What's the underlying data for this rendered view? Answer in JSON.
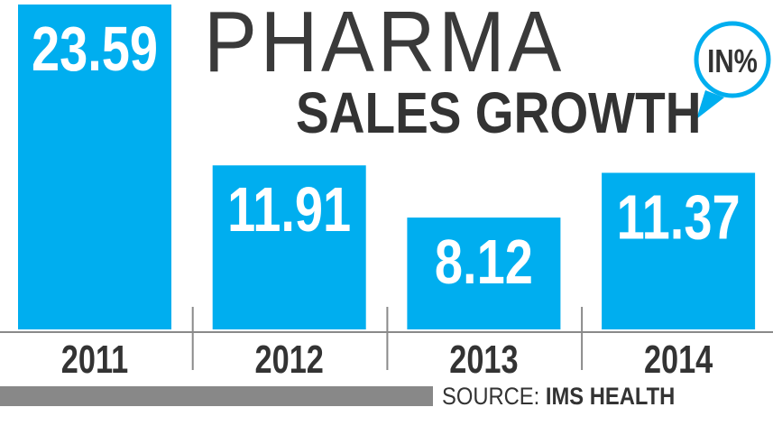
{
  "chart_data": {
    "type": "bar",
    "title": "PHARMA",
    "subtitle": "SALES GROWTH",
    "unit_badge": "IN%",
    "categories": [
      "2011",
      "2012",
      "2013",
      "2014"
    ],
    "values": [
      23.59,
      11.91,
      8.12,
      11.37
    ],
    "value_labels": [
      "23.59",
      "11.91",
      "8.12",
      "11.37"
    ],
    "xlabel": "",
    "ylabel": "",
    "ylim": [
      0,
      23.59
    ],
    "grid": false,
    "source_label": "SOURCE:",
    "source_name": "IMS HEALTH"
  },
  "colors": {
    "bar": "#00aeef",
    "text": "#333333",
    "axis": "#8a8a8a",
    "label": "#ffffff"
  }
}
